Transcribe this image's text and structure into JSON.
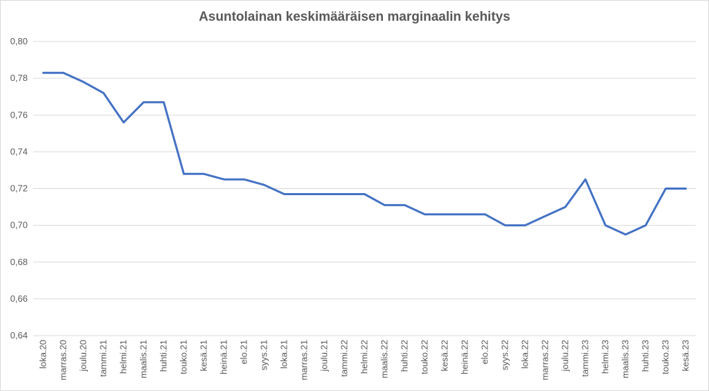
{
  "chart_data": {
    "type": "line",
    "title": "Asuntolainan keskimääräisen marginaalin kehitys",
    "xlabel": "",
    "ylabel": "",
    "ylim": [
      0.64,
      0.8
    ],
    "yticks": [
      "0,64",
      "0,66",
      "0,68",
      "0,70",
      "0,72",
      "0,74",
      "0,76",
      "0,78",
      "0,80"
    ],
    "grid": true,
    "legend": "none",
    "line_color": "#4472c4",
    "categories": [
      "loka.20",
      "marras.20",
      "joulu.20",
      "tammi.21",
      "helmi.21",
      "maalis.21",
      "huhti.21",
      "touko.21",
      "kesä.21",
      "heinä.21",
      "elo.21",
      "syys.21",
      "loka.21",
      "marras.21",
      "joulu.21",
      "tammi.22",
      "helmi.22",
      "maalis.22",
      "huhti.22",
      "touko.22",
      "kesä.22",
      "heinä.22",
      "elo.22",
      "syys.22",
      "loka.22",
      "marras.22",
      "joulu.22",
      "tammi.23",
      "helmi.23",
      "maalis.23",
      "huhti.23",
      "touko.23",
      "kesä.23"
    ],
    "series": [
      {
        "values": [
          0.783,
          0.783,
          0.778,
          0.772,
          0.756,
          0.767,
          0.767,
          0.728,
          0.728,
          0.725,
          0.725,
          0.722,
          0.717,
          0.717,
          0.717,
          0.717,
          0.717,
          0.711,
          0.711,
          0.706,
          0.706,
          0.706,
          0.706,
          0.7,
          0.7,
          0.705,
          0.71,
          0.725,
          0.7,
          0.695,
          0.7,
          0.72,
          0.72
        ]
      }
    ]
  }
}
